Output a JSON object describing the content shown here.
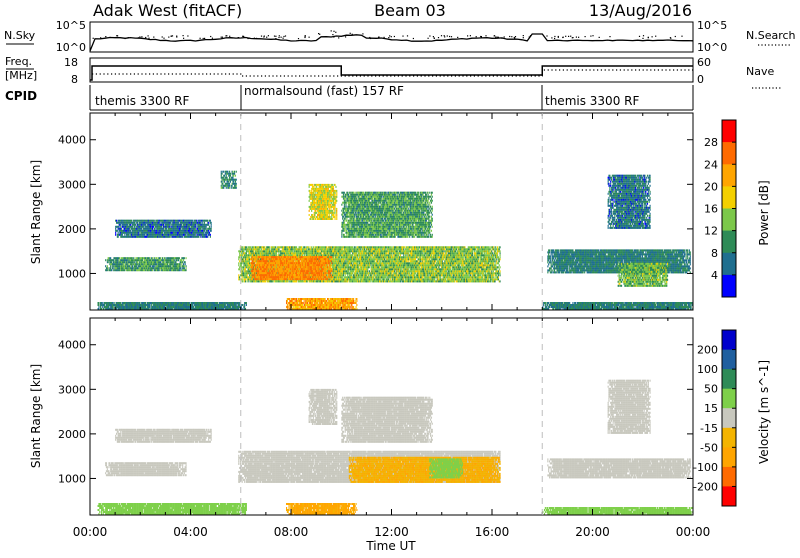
{
  "header": {
    "station": "Adak West (fitACF)",
    "beam": "Beam 03",
    "date": "13/Aug/2016"
  },
  "nsky_panel": {
    "left_label": "N.Sky",
    "left_ticks": [
      "10^5",
      "10^0"
    ],
    "right_ticks": [
      "10^5",
      "10^0"
    ],
    "right_label": "N.Search"
  },
  "freq_panel": {
    "left_label_top": "Freq.",
    "left_label_bottom": "[MHz]",
    "left_ticks": [
      "18",
      "8"
    ],
    "right_ticks": [
      "60",
      "0"
    ],
    "right_label": "Nave"
  },
  "cpid": {
    "label": "CPID",
    "segments": [
      {
        "name": "themis 3300 RF",
        "start_hour": 0
      },
      {
        "name": "normalsound (fast) 157 RF",
        "start_hour": 6
      },
      {
        "name": "themis 3300 RF",
        "start_hour": 18
      }
    ]
  },
  "colors": {
    "power": [
      "#0000ff",
      "#1f6f8f",
      "#2e8b57",
      "#7cc84a",
      "#f4d000",
      "#ffa500",
      "#ff6a00",
      "#ff0000"
    ],
    "velocity": [
      "#ff0000",
      "#ff6a00",
      "#ffa500",
      "#f4b400",
      "#c8c8be",
      "#7ed04a",
      "#2e8b57",
      "#1f5f9f",
      "#0000cc"
    ],
    "ground": "#808080"
  },
  "chart_data": [
    {
      "type": "heatmap",
      "title": "Power",
      "ylabel": "Slant Range [km]",
      "xlabel": "",
      "xlim": [
        0,
        24
      ],
      "ylim": [
        180,
        4600
      ],
      "yticks": [
        "1000",
        "2000",
        "3000",
        "4000"
      ],
      "xticks": [],
      "colorbar": {
        "label": "Power [dB]",
        "ticks": [
          "28",
          "24",
          "20",
          "16",
          "12",
          "8",
          "4"
        ],
        "range": [
          0,
          30
        ]
      },
      "regions": [
        {
          "t0": 0.3,
          "t1": 6.2,
          "r0": 180,
          "r1": 320,
          "value": 8
        },
        {
          "t0": 0.6,
          "t1": 3.8,
          "r0": 1050,
          "r1": 1350,
          "value": 10
        },
        {
          "t0": 1.0,
          "t1": 4.8,
          "r0": 1800,
          "r1": 2200,
          "value": 7
        },
        {
          "t0": 5.2,
          "t1": 5.8,
          "r0": 2900,
          "r1": 3300,
          "value": 9
        },
        {
          "t0": 5.9,
          "t1": 16.3,
          "r0": 800,
          "r1": 1600,
          "value": 14
        },
        {
          "t0": 6.4,
          "t1": 9.6,
          "r0": 850,
          "r1": 1350,
          "value": 24
        },
        {
          "t0": 7.8,
          "t1": 10.6,
          "r0": 180,
          "r1": 450,
          "value": 22
        },
        {
          "t0": 8.7,
          "t1": 9.8,
          "r0": 2200,
          "r1": 3000,
          "value": 17
        },
        {
          "t0": 10.0,
          "t1": 13.6,
          "r0": 1800,
          "r1": 2800,
          "value": 11
        },
        {
          "t0": 18.2,
          "t1": 23.9,
          "r0": 1000,
          "r1": 1500,
          "value": 8
        },
        {
          "t0": 20.6,
          "t1": 22.3,
          "r0": 2000,
          "r1": 3200,
          "value": 7
        },
        {
          "t0": 21.0,
          "t1": 23.0,
          "r0": 700,
          "r1": 1200,
          "value": 13
        },
        {
          "t0": 18.0,
          "t1": 24.0,
          "r0": 180,
          "r1": 330,
          "value": 8
        }
      ]
    },
    {
      "type": "heatmap",
      "title": "Velocity",
      "ylabel": "Slant Range [km]",
      "xlabel": "Time UT",
      "xlim": [
        0,
        24
      ],
      "ylim": [
        180,
        4600
      ],
      "yticks": [
        "1000",
        "2000",
        "3000",
        "4000"
      ],
      "xticks": [
        "00:00",
        "04:00",
        "08:00",
        "12:00",
        "16:00",
        "20:00",
        "00:00"
      ],
      "colorbar": {
        "label": "Velocity [m s^-1]",
        "ticks": [
          "200",
          "100",
          "50",
          "15",
          "-15",
          "-50",
          "-100",
          "-200"
        ],
        "range": [
          -250,
          250
        ]
      },
      "regions": [
        {
          "t0": 0.3,
          "t1": 6.2,
          "r0": 180,
          "r1": 420,
          "value": 30
        },
        {
          "t0": 0.6,
          "t1": 3.8,
          "r0": 1050,
          "r1": 1350,
          "value": 0
        },
        {
          "t0": 1.0,
          "t1": 4.8,
          "r0": 1800,
          "r1": 2100,
          "value": 0
        },
        {
          "t0": 5.9,
          "t1": 16.3,
          "r0": 900,
          "r1": 1600,
          "value": 0
        },
        {
          "t0": 10.3,
          "t1": 16.3,
          "r0": 900,
          "r1": 1450,
          "value": -45
        },
        {
          "t0": 13.5,
          "t1": 14.8,
          "r0": 1000,
          "r1": 1450,
          "value": 30
        },
        {
          "t0": 7.8,
          "t1": 10.6,
          "r0": 180,
          "r1": 450,
          "value": -60
        },
        {
          "t0": 8.7,
          "t1": 9.8,
          "r0": 2200,
          "r1": 3000,
          "value": 0
        },
        {
          "t0": 10.0,
          "t1": 13.6,
          "r0": 1800,
          "r1": 2800,
          "value": 0
        },
        {
          "t0": 18.2,
          "t1": 23.9,
          "r0": 1000,
          "r1": 1450,
          "value": 0
        },
        {
          "t0": 20.6,
          "t1": 22.3,
          "r0": 2000,
          "r1": 3200,
          "value": 0
        },
        {
          "t0": 18.0,
          "t1": 24.0,
          "r0": 180,
          "r1": 320,
          "value": 30
        }
      ]
    }
  ]
}
